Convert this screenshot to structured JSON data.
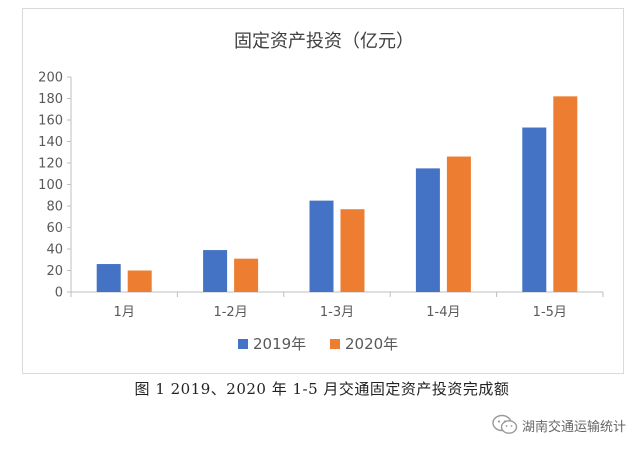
{
  "chart_data": {
    "type": "bar",
    "title": "固定资产投资（亿元）",
    "categories": [
      "1月",
      "1-2月",
      "1-3月",
      "1-4月",
      "1-5月"
    ],
    "series": [
      {
        "name": "2019年",
        "values": [
          26,
          39,
          85,
          115,
          153
        ],
        "color": "#4472C4"
      },
      {
        "name": "2020年",
        "values": [
          20,
          31,
          77,
          126,
          182
        ],
        "color": "#ED7D31"
      }
    ],
    "ylim": [
      0,
      200
    ],
    "yticks": [
      0,
      20,
      40,
      60,
      80,
      100,
      120,
      140,
      160,
      180,
      200
    ],
    "grid": false,
    "legend": "bottom"
  },
  "caption": "图 1 2019、2020 年 1-5 月交通固定资产投资完成额",
  "watermark": {
    "text": "湖南交通运输统计",
    "icon": "wechat-icon"
  }
}
